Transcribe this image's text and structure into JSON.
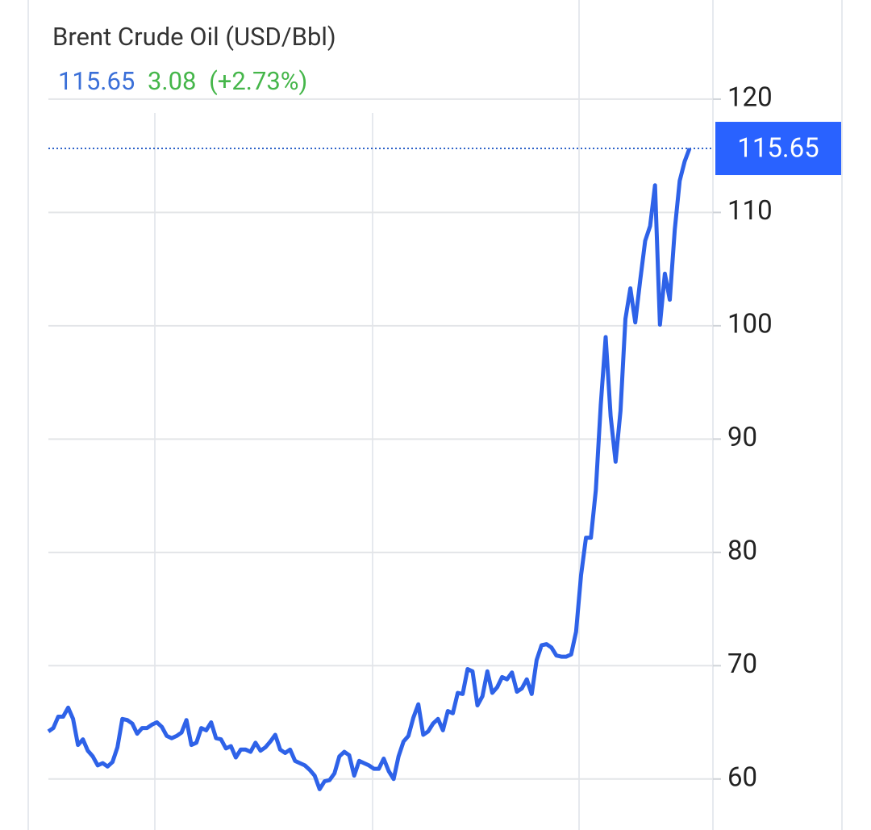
{
  "chart_data": {
    "type": "line",
    "title": "Brent Crude Oil (USD/Bbl)",
    "last_price": 115.65,
    "change": 3.08,
    "change_percent_label": "(+2.73%)",
    "series": [
      {
        "name": "Brent Crude Oil",
        "color": "#2e62e8",
        "values": [
          64.2,
          64.5,
          65.5,
          65.5,
          66.3,
          65.3,
          63.0,
          63.5,
          62.5,
          62.0,
          61.2,
          61.4,
          61.1,
          61.5,
          62.8,
          65.3,
          65.2,
          64.9,
          64.0,
          64.5,
          64.5,
          64.8,
          65.0,
          64.6,
          63.8,
          63.6,
          63.8,
          64.1,
          65.2,
          63.0,
          63.2,
          64.5,
          64.3,
          65.0,
          63.6,
          63.5,
          62.7,
          62.9,
          61.9,
          62.6,
          62.6,
          62.4,
          63.2,
          62.5,
          62.8,
          63.3,
          63.9,
          62.6,
          62.3,
          62.6,
          61.6,
          61.4,
          61.2,
          60.8,
          60.3,
          59.1,
          59.8,
          59.9,
          60.5,
          62.0,
          62.4,
          62.1,
          60.3,
          61.6,
          61.4,
          61.2,
          60.9,
          60.9,
          61.8,
          60.7,
          60.0,
          62.0,
          63.3,
          63.8,
          65.4,
          66.6,
          63.9,
          64.2,
          64.9,
          65.3,
          64.3,
          66.0,
          65.8,
          67.6,
          67.5,
          69.7,
          69.5,
          66.5,
          67.3,
          69.5,
          67.6,
          68.1,
          69.0,
          68.8,
          69.4,
          67.7,
          68.0,
          68.8,
          67.5,
          70.5,
          71.8,
          71.9,
          71.6,
          70.9,
          70.8,
          70.8,
          71.0,
          73.0,
          78.0,
          81.3,
          81.3,
          85.5,
          93.0,
          99.0,
          92.0,
          88.0,
          92.5,
          100.6,
          103.3,
          100.3,
          104.0,
          107.5,
          108.8,
          112.4,
          100.1,
          104.6,
          102.3,
          108.5,
          112.8,
          114.5,
          115.65
        ]
      }
    ],
    "ylim": [
      55.5,
      128.75
    ],
    "yticks": [
      60,
      70,
      80,
      90,
      100,
      110,
      120
    ],
    "grid": true
  }
}
